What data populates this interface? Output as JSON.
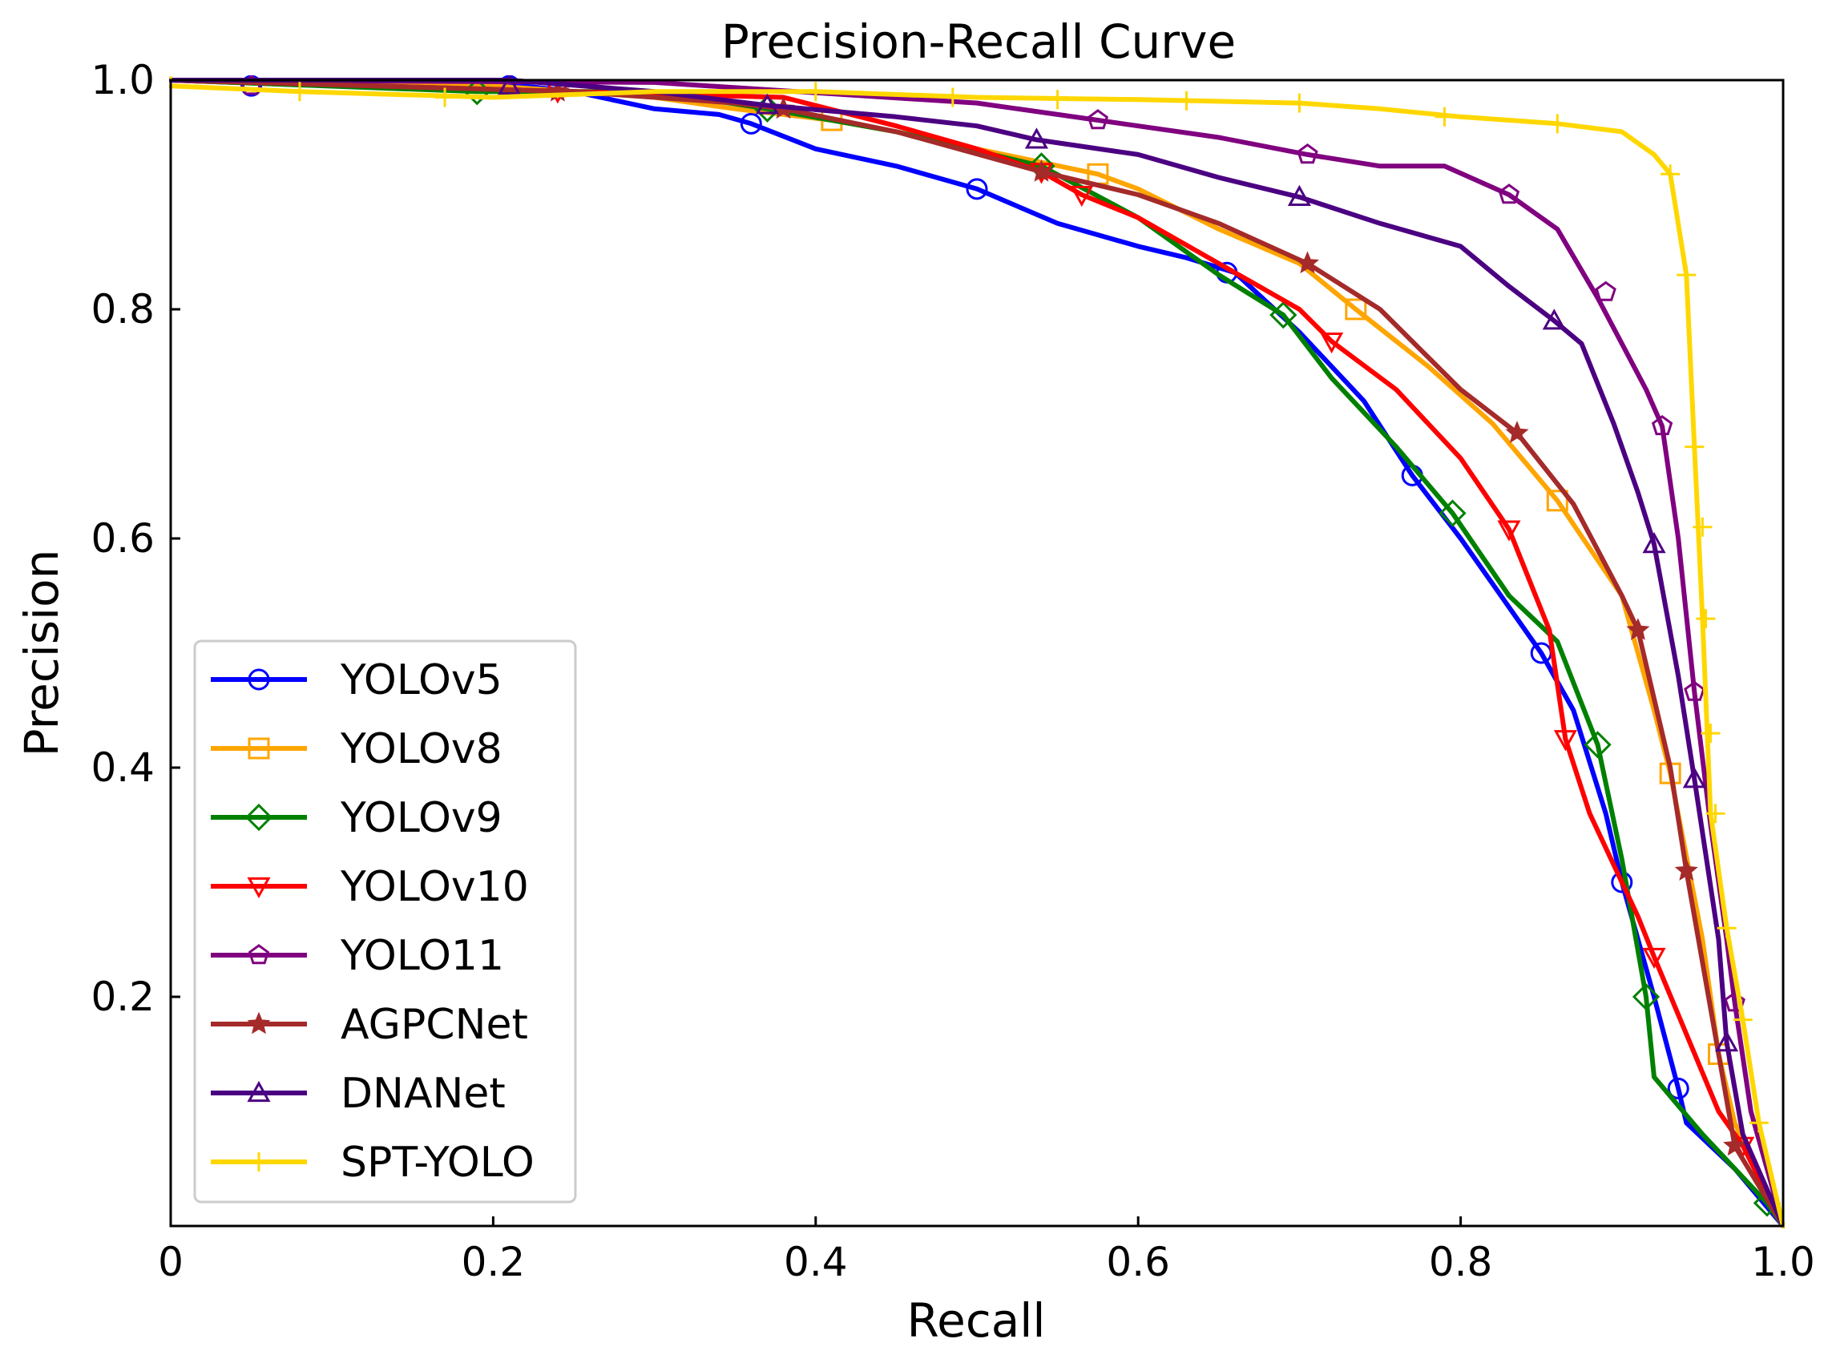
{
  "chart_data": {
    "type": "line",
    "title": "Precision-Recall Curve",
    "xlabel": "Recall",
    "ylabel": "Precision",
    "xlim": [
      0,
      1
    ],
    "ylim": [
      0,
      1
    ],
    "x_ticks": [
      0,
      0.2,
      0.4,
      0.6,
      0.8,
      1.0
    ],
    "x_tick_labels": [
      "0",
      "0.2",
      "0.4",
      "0.6",
      "0.8",
      "1.0"
    ],
    "y_ticks": [
      0.2,
      0.4,
      0.6,
      0.8,
      1.0
    ],
    "y_tick_labels": [
      "0.2",
      "0.4",
      "0.6",
      "0.8",
      "1.0"
    ],
    "grid": false,
    "legend_position": "lower-left",
    "series": [
      {
        "name": "YOLOv5",
        "color": "#0000ff",
        "marker": "circle",
        "points": [
          [
            0,
            1.0
          ],
          [
            0.1,
            0.995
          ],
          [
            0.2,
            0.998
          ],
          [
            0.25,
            0.99
          ],
          [
            0.3,
            0.975
          ],
          [
            0.34,
            0.97
          ],
          [
            0.36,
            0.962
          ],
          [
            0.4,
            0.94
          ],
          [
            0.45,
            0.925
          ],
          [
            0.5,
            0.905
          ],
          [
            0.55,
            0.875
          ],
          [
            0.6,
            0.855
          ],
          [
            0.63,
            0.845
          ],
          [
            0.66,
            0.832
          ],
          [
            0.7,
            0.78
          ],
          [
            0.74,
            0.72
          ],
          [
            0.77,
            0.655
          ],
          [
            0.8,
            0.6
          ],
          [
            0.83,
            0.54
          ],
          [
            0.85,
            0.5
          ],
          [
            0.87,
            0.45
          ],
          [
            0.89,
            0.36
          ],
          [
            0.9,
            0.3
          ],
          [
            0.92,
            0.2
          ],
          [
            0.935,
            0.12
          ],
          [
            0.94,
            0.09
          ],
          [
            0.97,
            0.05
          ],
          [
            1.0,
            0.0
          ]
        ],
        "marker_points": [
          [
            0.05,
            0.995
          ],
          [
            0.21,
            0.995
          ],
          [
            0.36,
            0.962
          ],
          [
            0.5,
            0.905
          ],
          [
            0.655,
            0.832
          ],
          [
            0.77,
            0.655
          ],
          [
            0.85,
            0.5
          ],
          [
            0.9,
            0.3
          ],
          [
            0.935,
            0.12
          ]
        ]
      },
      {
        "name": "YOLOv8",
        "color": "#ffa500",
        "marker": "square",
        "points": [
          [
            0,
            1.0
          ],
          [
            0.2,
            0.995
          ],
          [
            0.3,
            0.985
          ],
          [
            0.35,
            0.975
          ],
          [
            0.41,
            0.965
          ],
          [
            0.45,
            0.955
          ],
          [
            0.5,
            0.94
          ],
          [
            0.575,
            0.918
          ],
          [
            0.6,
            0.905
          ],
          [
            0.65,
            0.87
          ],
          [
            0.7,
            0.84
          ],
          [
            0.735,
            0.8
          ],
          [
            0.78,
            0.75
          ],
          [
            0.82,
            0.7
          ],
          [
            0.86,
            0.633
          ],
          [
            0.9,
            0.55
          ],
          [
            0.92,
            0.45
          ],
          [
            0.93,
            0.395
          ],
          [
            0.95,
            0.25
          ],
          [
            0.96,
            0.15
          ],
          [
            0.97,
            0.09
          ],
          [
            1.0,
            0.0
          ]
        ],
        "marker_points": [
          [
            0.41,
            0.965
          ],
          [
            0.575,
            0.918
          ],
          [
            0.735,
            0.8
          ],
          [
            0.86,
            0.633
          ],
          [
            0.93,
            0.395
          ],
          [
            0.96,
            0.15
          ]
        ]
      },
      {
        "name": "YOLOv9",
        "color": "#008000",
        "marker": "diamond",
        "points": [
          [
            0,
            1.0
          ],
          [
            0.19,
            0.99
          ],
          [
            0.3,
            0.99
          ],
          [
            0.37,
            0.975
          ],
          [
            0.45,
            0.955
          ],
          [
            0.54,
            0.925
          ],
          [
            0.6,
            0.88
          ],
          [
            0.65,
            0.83
          ],
          [
            0.69,
            0.795
          ],
          [
            0.72,
            0.74
          ],
          [
            0.76,
            0.68
          ],
          [
            0.795,
            0.622
          ],
          [
            0.83,
            0.55
          ],
          [
            0.86,
            0.51
          ],
          [
            0.885,
            0.42
          ],
          [
            0.9,
            0.32
          ],
          [
            0.915,
            0.2
          ],
          [
            0.92,
            0.13
          ],
          [
            0.95,
            0.08
          ],
          [
            0.99,
            0.02
          ],
          [
            1.0,
            0.0
          ]
        ],
        "marker_points": [
          [
            0.19,
            0.99
          ],
          [
            0.37,
            0.975
          ],
          [
            0.54,
            0.925
          ],
          [
            0.69,
            0.795
          ],
          [
            0.795,
            0.622
          ],
          [
            0.885,
            0.42
          ],
          [
            0.915,
            0.2
          ],
          [
            0.99,
            0.02
          ]
        ]
      },
      {
        "name": "YOLOv10",
        "color": "#ff0000",
        "marker": "triangle-down",
        "points": [
          [
            0,
            1.0
          ],
          [
            0.25,
            0.99
          ],
          [
            0.38,
            0.985
          ],
          [
            0.45,
            0.96
          ],
          [
            0.5,
            0.94
          ],
          [
            0.54,
            0.92
          ],
          [
            0.565,
            0.9
          ],
          [
            0.6,
            0.88
          ],
          [
            0.65,
            0.84
          ],
          [
            0.7,
            0.8
          ],
          [
            0.72,
            0.772
          ],
          [
            0.76,
            0.73
          ],
          [
            0.8,
            0.67
          ],
          [
            0.83,
            0.608
          ],
          [
            0.855,
            0.52
          ],
          [
            0.865,
            0.425
          ],
          [
            0.88,
            0.36
          ],
          [
            0.91,
            0.27
          ],
          [
            0.92,
            0.235
          ],
          [
            0.96,
            0.1
          ],
          [
            0.975,
            0.07
          ],
          [
            1.0,
            0.0
          ]
        ],
        "marker_points": [
          [
            0.24,
            0.99
          ],
          [
            0.54,
            0.92
          ],
          [
            0.565,
            0.9
          ],
          [
            0.72,
            0.772
          ],
          [
            0.83,
            0.608
          ],
          [
            0.865,
            0.425
          ],
          [
            0.92,
            0.235
          ],
          [
            0.975,
            0.07
          ]
        ]
      },
      {
        "name": "YOLO11",
        "color": "#800080",
        "marker": "pentagon",
        "points": [
          [
            0,
            1.0
          ],
          [
            0.3,
            0.998
          ],
          [
            0.5,
            0.98
          ],
          [
            0.575,
            0.965
          ],
          [
            0.65,
            0.95
          ],
          [
            0.705,
            0.935
          ],
          [
            0.75,
            0.925
          ],
          [
            0.79,
            0.925
          ],
          [
            0.83,
            0.9
          ],
          [
            0.86,
            0.87
          ],
          [
            0.885,
            0.81
          ],
          [
            0.9,
            0.77
          ],
          [
            0.915,
            0.73
          ],
          [
            0.925,
            0.698
          ],
          [
            0.935,
            0.6
          ],
          [
            0.945,
            0.466
          ],
          [
            0.955,
            0.35
          ],
          [
            0.965,
            0.25
          ],
          [
            0.97,
            0.195
          ],
          [
            0.98,
            0.1
          ],
          [
            0.99,
            0.05
          ],
          [
            1.0,
            0.0
          ]
        ],
        "marker_points": [
          [
            0.05,
            0.995
          ],
          [
            0.575,
            0.965
          ],
          [
            0.705,
            0.935
          ],
          [
            0.83,
            0.9
          ],
          [
            0.89,
            0.815
          ],
          [
            0.925,
            0.698
          ],
          [
            0.945,
            0.466
          ],
          [
            0.97,
            0.195
          ]
        ]
      },
      {
        "name": "AGPCNet",
        "color": "#a52a2a",
        "marker": "star",
        "points": [
          [
            0,
            1.0
          ],
          [
            0.25,
            0.99
          ],
          [
            0.35,
            0.98
          ],
          [
            0.38,
            0.975
          ],
          [
            0.45,
            0.955
          ],
          [
            0.54,
            0.92
          ],
          [
            0.6,
            0.9
          ],
          [
            0.65,
            0.875
          ],
          [
            0.705,
            0.84
          ],
          [
            0.75,
            0.8
          ],
          [
            0.8,
            0.73
          ],
          [
            0.835,
            0.692
          ],
          [
            0.87,
            0.63
          ],
          [
            0.9,
            0.55
          ],
          [
            0.91,
            0.52
          ],
          [
            0.93,
            0.4
          ],
          [
            0.94,
            0.31
          ],
          [
            0.96,
            0.15
          ],
          [
            0.97,
            0.07
          ],
          [
            1.0,
            0.0
          ]
        ],
        "marker_points": [
          [
            0.24,
            0.99
          ],
          [
            0.38,
            0.975
          ],
          [
            0.54,
            0.92
          ],
          [
            0.705,
            0.84
          ],
          [
            0.835,
            0.692
          ],
          [
            0.91,
            0.52
          ],
          [
            0.94,
            0.31
          ],
          [
            0.97,
            0.07
          ]
        ]
      },
      {
        "name": "DNANet",
        "color": "#4b0082",
        "marker": "triangle-up",
        "points": [
          [
            0,
            1.0
          ],
          [
            0.21,
            1.0
          ],
          [
            0.3,
            0.99
          ],
          [
            0.37,
            0.978
          ],
          [
            0.45,
            0.968
          ],
          [
            0.5,
            0.96
          ],
          [
            0.537,
            0.948
          ],
          [
            0.6,
            0.935
          ],
          [
            0.65,
            0.915
          ],
          [
            0.7,
            0.898
          ],
          [
            0.75,
            0.875
          ],
          [
            0.8,
            0.855
          ],
          [
            0.83,
            0.82
          ],
          [
            0.858,
            0.79
          ],
          [
            0.875,
            0.77
          ],
          [
            0.895,
            0.7
          ],
          [
            0.91,
            0.64
          ],
          [
            0.92,
            0.595
          ],
          [
            0.935,
            0.48
          ],
          [
            0.945,
            0.39
          ],
          [
            0.96,
            0.25
          ],
          [
            0.965,
            0.16
          ],
          [
            0.975,
            0.08
          ],
          [
            1.0,
            0.0
          ]
        ],
        "marker_points": [
          [
            0.21,
            0.995
          ],
          [
            0.37,
            0.978
          ],
          [
            0.537,
            0.948
          ],
          [
            0.7,
            0.898
          ],
          [
            0.858,
            0.79
          ],
          [
            0.92,
            0.595
          ],
          [
            0.945,
            0.39
          ],
          [
            0.965,
            0.16
          ]
        ]
      },
      {
        "name": "SPT-YOLO",
        "color": "#ffd700",
        "marker": "plus",
        "points": [
          [
            0,
            0.995
          ],
          [
            0.08,
            0.99
          ],
          [
            0.2,
            0.985
          ],
          [
            0.3,
            0.99
          ],
          [
            0.4,
            0.99
          ],
          [
            0.5,
            0.985
          ],
          [
            0.6,
            0.983
          ],
          [
            0.7,
            0.98
          ],
          [
            0.75,
            0.975
          ],
          [
            0.8,
            0.968
          ],
          [
            0.86,
            0.962
          ],
          [
            0.9,
            0.955
          ],
          [
            0.92,
            0.935
          ],
          [
            0.93,
            0.918
          ],
          [
            0.94,
            0.83
          ],
          [
            0.945,
            0.68
          ],
          [
            0.95,
            0.53
          ],
          [
            0.955,
            0.36
          ],
          [
            0.965,
            0.26
          ],
          [
            0.975,
            0.18
          ],
          [
            0.985,
            0.09
          ],
          [
            1.0,
            0.0
          ]
        ],
        "marker_points": [
          [
            0,
            0.995
          ],
          [
            0.08,
            0.99
          ],
          [
            0.17,
            0.985
          ],
          [
            0.4,
            0.99
          ],
          [
            0.485,
            0.985
          ],
          [
            0.55,
            0.983
          ],
          [
            0.63,
            0.982
          ],
          [
            0.7,
            0.98
          ],
          [
            0.79,
            0.968
          ],
          [
            0.86,
            0.962
          ],
          [
            0.93,
            0.918
          ],
          [
            0.94,
            0.83
          ],
          [
            0.945,
            0.68
          ],
          [
            0.95,
            0.61
          ],
          [
            0.952,
            0.53
          ],
          [
            0.955,
            0.43
          ],
          [
            0.958,
            0.36
          ],
          [
            0.965,
            0.26
          ],
          [
            0.975,
            0.18
          ],
          [
            0.985,
            0.09
          ]
        ]
      }
    ]
  }
}
